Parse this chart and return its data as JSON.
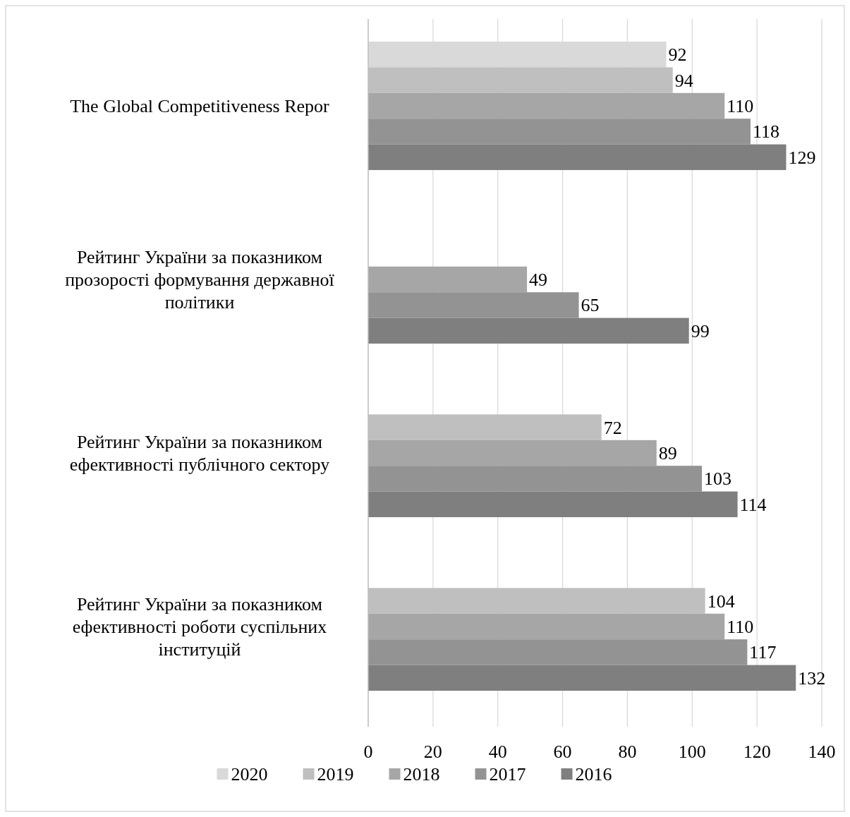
{
  "chart_data": {
    "type": "bar",
    "orientation": "horizontal",
    "categories": [
      "The Global Competitiveness Repor",
      "Рейтинг України за показником прозорості формування державної політики",
      "Рейтинг України за показником ефективності публічного сектору",
      "Рейтинг України за показником ефективності роботи суспільних інституцій"
    ],
    "series": [
      {
        "name": "2020",
        "color": "#d9d9d9",
        "values": [
          92,
          null,
          null,
          null
        ]
      },
      {
        "name": "2019",
        "color": "#bfbfbf",
        "values": [
          94,
          null,
          72,
          104
        ]
      },
      {
        "name": "2018",
        "color": "#a6a6a6",
        "values": [
          110,
          49,
          89,
          110
        ]
      },
      {
        "name": "2017",
        "color": "#939393",
        "values": [
          118,
          65,
          103,
          117
        ]
      },
      {
        "name": "2016",
        "color": "#7f7f7f",
        "values": [
          129,
          99,
          114,
          132
        ]
      }
    ],
    "xlim": [
      0,
      140
    ],
    "xticks": [
      0,
      20,
      40,
      60,
      80,
      100,
      120,
      140
    ],
    "grid": "x",
    "legend": "bottom",
    "data_labels": true
  }
}
